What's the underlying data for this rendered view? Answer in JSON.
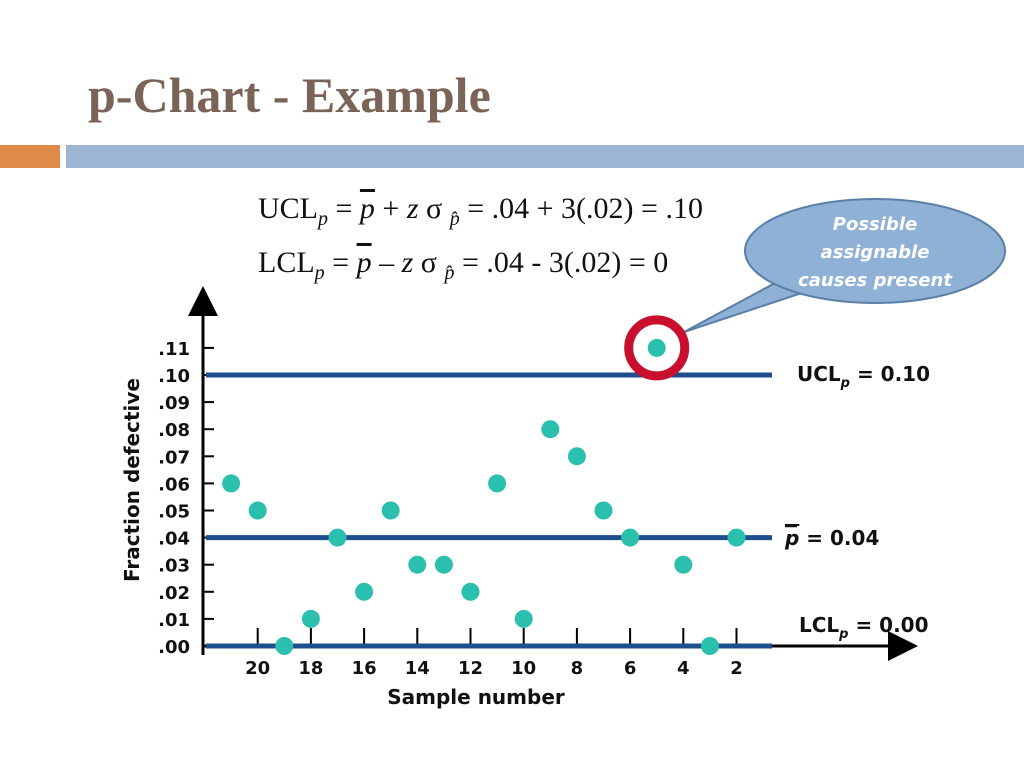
{
  "slide": {
    "title": "p-Chart - Example",
    "formula_ucl": "UCLp = p + z σ p = .04 + 3(.02) = .10",
    "formula_lcl": "LCLp = p − z σ p = .04 - 3(.02) = 0",
    "callout": [
      "Possible",
      "assignable",
      "causes present"
    ]
  },
  "colors": {
    "title": "#7a6357",
    "limit_line": "#1f4e8c",
    "point": "#2bbfae",
    "target_ring": "#c8102e",
    "callout_fill": "#8fb1d6"
  },
  "chart_data": {
    "type": "scatter",
    "title": "",
    "xlabel": "Sample number",
    "ylabel": "Fraction defective",
    "x_tick_labels": [
      "20",
      "18",
      "16",
      "14",
      "12",
      "10",
      "8",
      "6",
      "4",
      "2"
    ],
    "y_tick_labels": [
      ".00",
      ".01",
      ".02",
      ".03",
      ".04",
      ".05",
      ".06",
      ".07",
      ".08",
      ".09",
      ".10",
      ".11"
    ],
    "xlim": [
      1,
      21.5
    ],
    "x_reversed": true,
    "ylim": [
      0,
      0.11
    ],
    "series": [
      {
        "x": [
          21,
          20,
          19,
          18,
          17,
          16,
          15,
          14,
          13,
          12,
          11,
          10,
          9,
          8,
          7,
          6,
          5,
          4,
          3,
          2
        ],
        "y": [
          0.06,
          0.05,
          0.0,
          0.01,
          0.04,
          0.02,
          0.05,
          0.03,
          0.03,
          0.02,
          0.06,
          0.01,
          0.08,
          0.07,
          0.05,
          0.04,
          0.11,
          0.03,
          0.0,
          0.04
        ]
      }
    ],
    "reference_lines": [
      {
        "label": "UCLp = 0.10",
        "y": 0.1
      },
      {
        "label": "p = 0.04",
        "y": 0.04
      },
      {
        "label": "LCLp = 0.00",
        "y": 0.0
      }
    ],
    "highlight": {
      "x": 5,
      "y": 0.11
    }
  }
}
